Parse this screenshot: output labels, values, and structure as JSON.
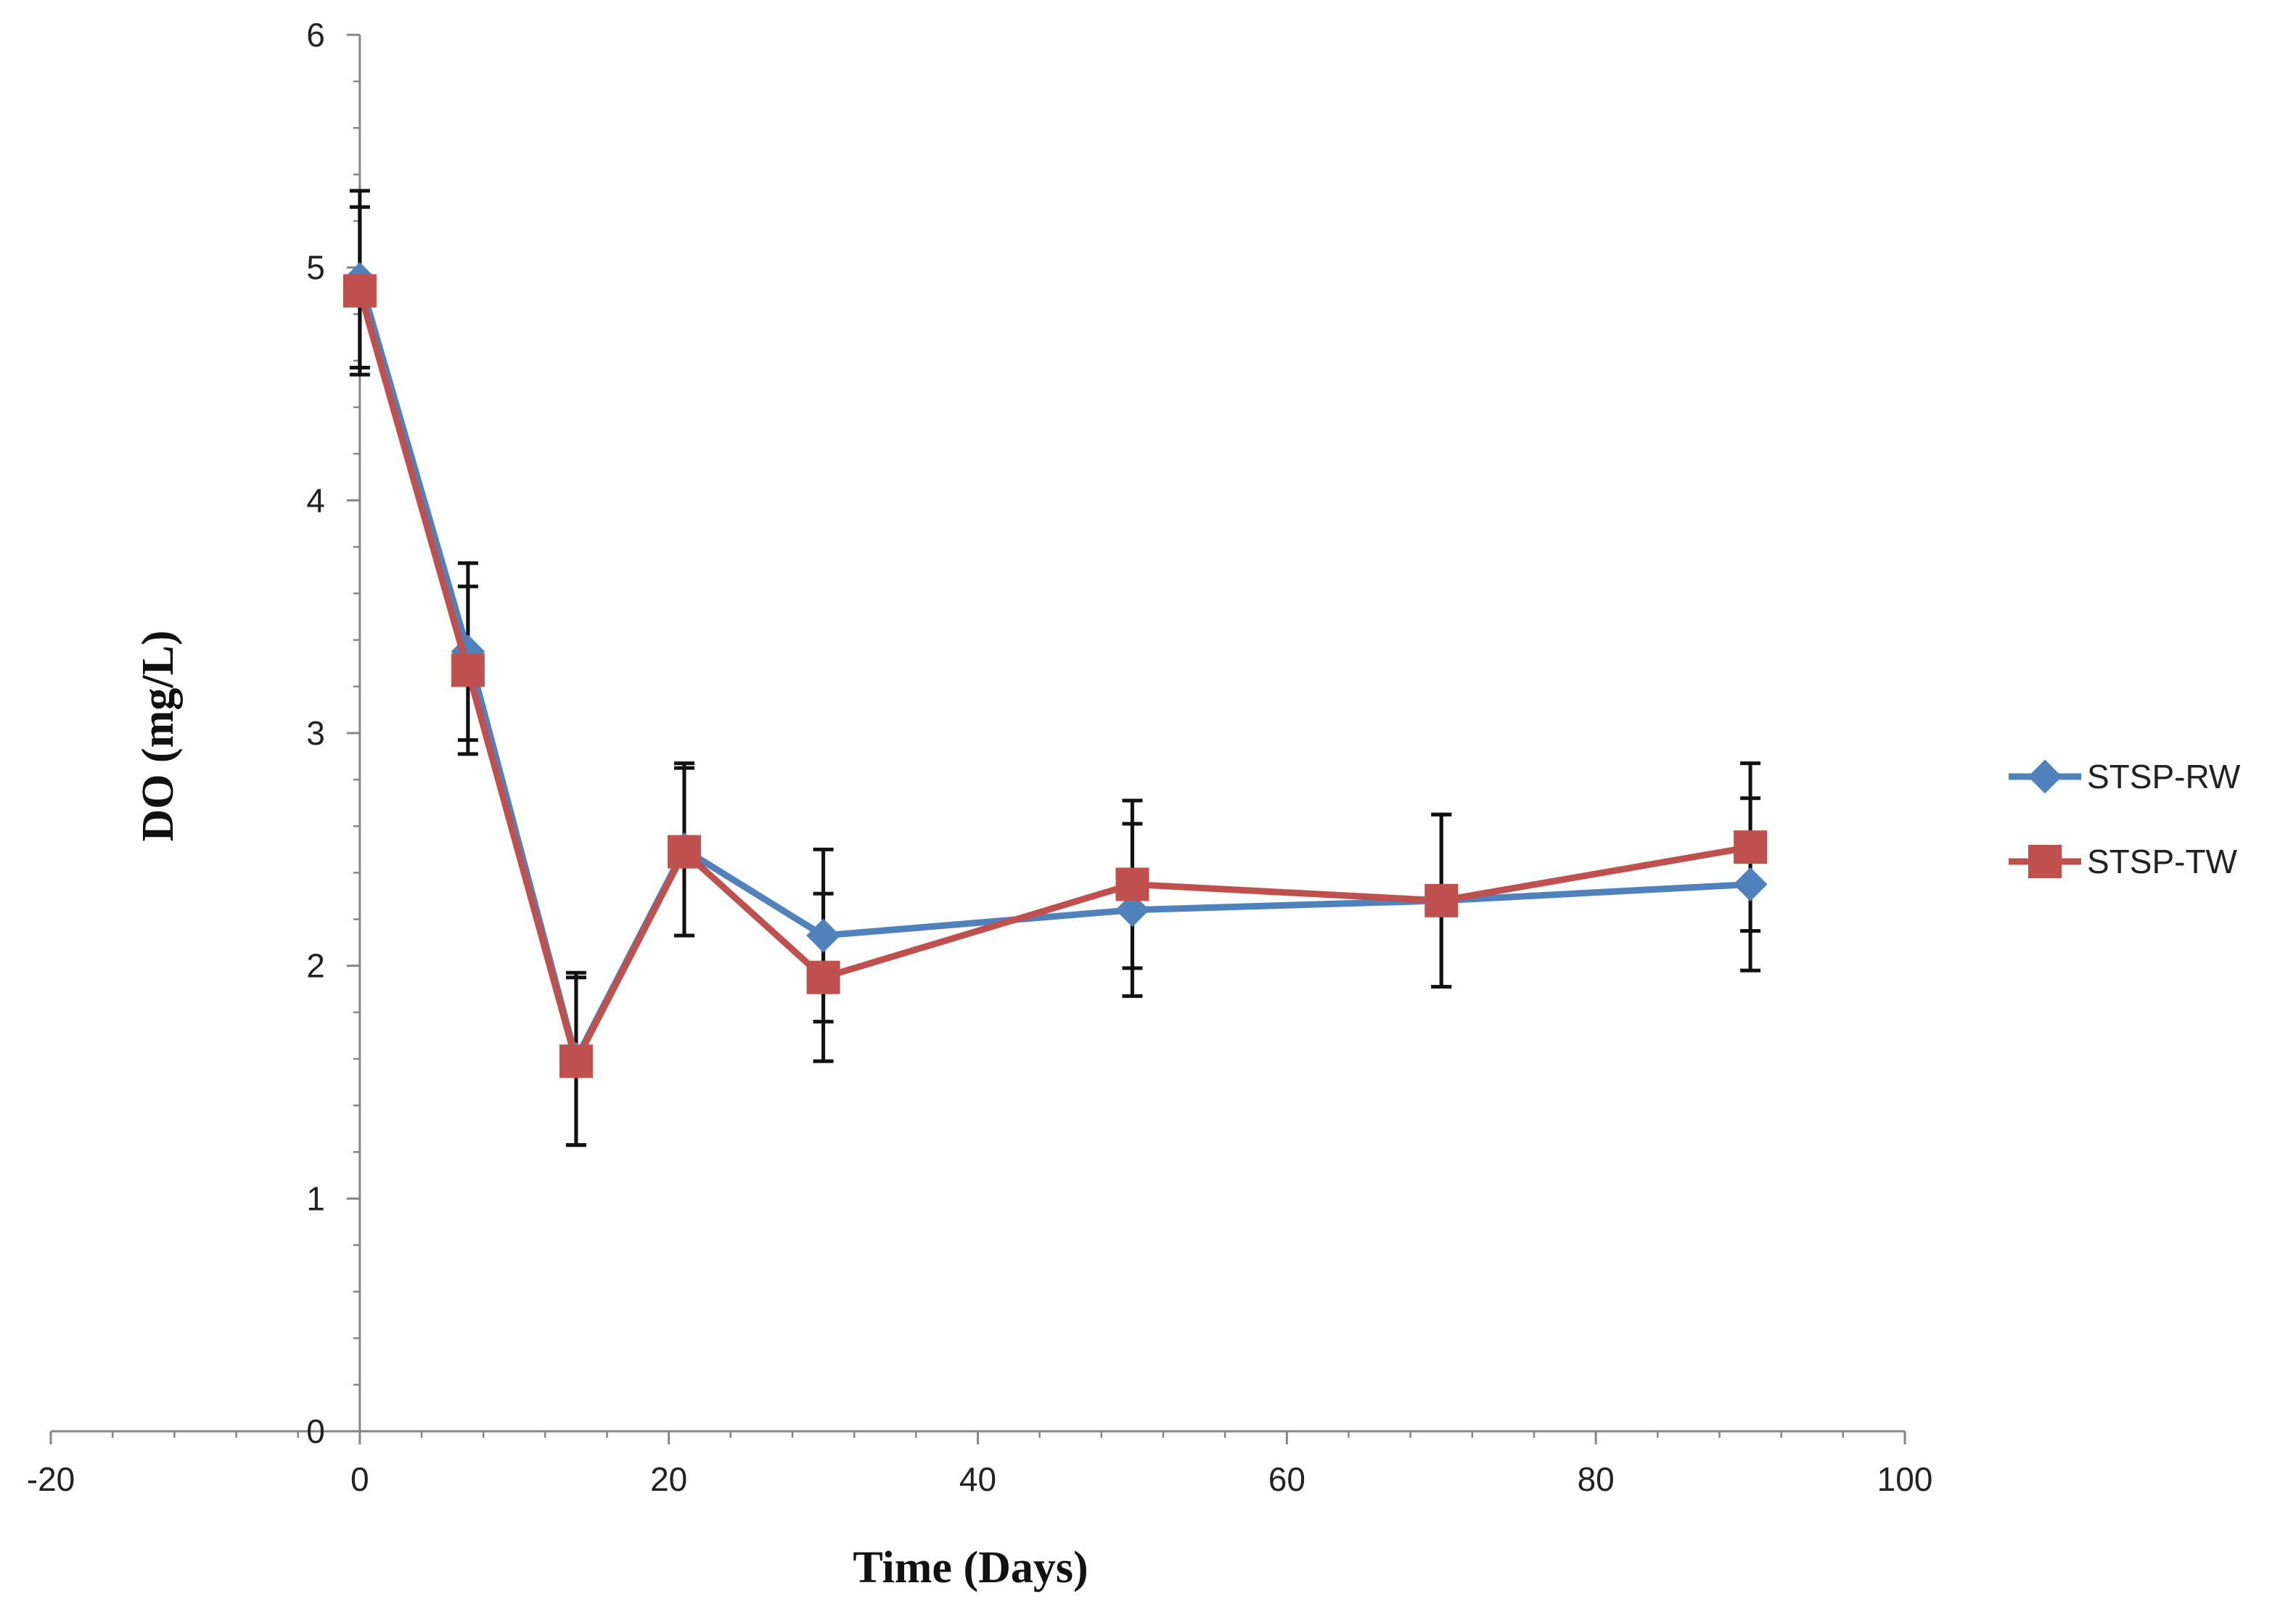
{
  "chart_data": {
    "type": "line",
    "title": "",
    "xlabel": "Time (Days)",
    "ylabel": "DO (mg/L)",
    "xlim": [
      -20,
      100
    ],
    "ylim": [
      0,
      6
    ],
    "x_ticks": [
      -20,
      0,
      20,
      40,
      60,
      80,
      100
    ],
    "y_ticks": [
      0,
      1,
      2,
      3,
      4,
      5,
      6
    ],
    "x_minor_step": 4,
    "y_minor_step": 0.2,
    "grid": false,
    "legend_position": "right",
    "series": [
      {
        "name": "STSP-RW",
        "color": "#4F81BD",
        "marker": "diamond",
        "x": [
          0,
          7,
          14,
          21,
          30,
          50,
          70,
          90
        ],
        "y": [
          4.95,
          3.35,
          1.6,
          2.5,
          2.13,
          2.24,
          2.28,
          2.35
        ],
        "error": [
          0.38,
          0.38,
          0.37,
          0.37,
          0.37,
          0.37,
          0.37,
          0.37
        ]
      },
      {
        "name": "STSP-TW",
        "color": "#C0504D",
        "marker": "square",
        "x": [
          0,
          7,
          14,
          21,
          30,
          50,
          70,
          90
        ],
        "y": [
          4.9,
          3.27,
          1.59,
          2.49,
          1.95,
          2.35,
          2.28,
          2.51
        ],
        "error": [
          0.36,
          0.36,
          0.36,
          0.36,
          0.36,
          0.36,
          0.37,
          0.36
        ]
      }
    ]
  }
}
